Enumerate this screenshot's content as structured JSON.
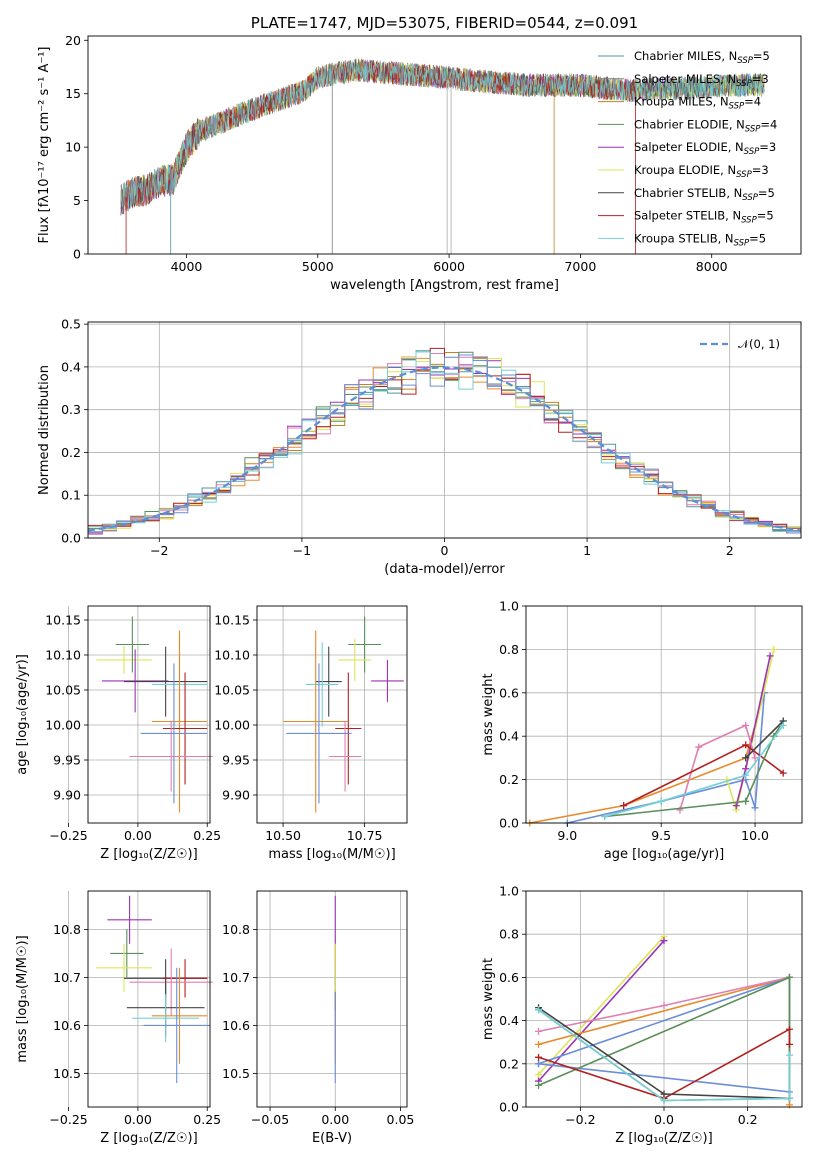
{
  "chart_data": [
    {
      "type": "line",
      "title": "PLATE=1747, MJD=53075, FIBERID=0544, z=0.091",
      "xlabel": "wavelength [Angstrom, rest frame]",
      "ylabel": "Flux [fλ10⁻¹⁷ erg cm⁻² s⁻¹ A⁻¹]",
      "xlim": [
        3250,
        8680
      ],
      "ylim": [
        0,
        20.4
      ],
      "xticks": [
        "4000",
        "5000",
        "6000",
        "7000",
        "8000"
      ],
      "yticks": [
        "0",
        "5",
        "10",
        "15",
        "20"
      ],
      "grid": false,
      "legend": "upper right",
      "spectrum_anchors": {
        "x": [
          3500,
          3600,
          3700,
          3800,
          3900,
          4000,
          4100,
          4200,
          4300,
          4400,
          4600,
          4800,
          4900,
          5000,
          5100,
          5300,
          5500,
          5700,
          6000,
          6200,
          6400,
          6600,
          6800,
          7000,
          7200,
          7400,
          7600,
          7800,
          8000,
          8200,
          8400
        ],
        "y": [
          5.0,
          5.8,
          6.0,
          6.8,
          7.0,
          10.0,
          11.5,
          12.0,
          12.5,
          13.0,
          14.0,
          14.8,
          15.3,
          16.5,
          16.8,
          17.2,
          17.0,
          16.8,
          16.5,
          16.2,
          16.0,
          15.8,
          15.8,
          15.8,
          15.5,
          15.3,
          15.5,
          15.5,
          15.6,
          15.8,
          15.8
        ]
      },
      "series": [
        {
          "name": "Chabrier MILES",
          "label_suffix": "=5",
          "color": "#4f9a9a"
        },
        {
          "name": "Salpeter MILES",
          "label_suffix": "=3",
          "color": "#7e7e7e"
        },
        {
          "name": "Kroupa MILES",
          "label_suffix": "=4",
          "color": "#c8811f"
        },
        {
          "name": "Chabrier ELODIE",
          "label_suffix": "=4",
          "color": "#5a8f5a"
        },
        {
          "name": "Salpeter ELODIE",
          "label_suffix": "=3",
          "color": "#9b33b5"
        },
        {
          "name": "Kroupa ELODIE",
          "label_suffix": "=3",
          "color": "#dde55a"
        },
        {
          "name": "Chabrier STELIB",
          "label_suffix": "=5",
          "color": "#444444"
        },
        {
          "name": "Salpeter STELIB",
          "label_suffix": "=5",
          "color": "#b32020"
        },
        {
          "name": "Kroupa STELIB",
          "label_suffix": "=5",
          "color": "#74d0d8"
        }
      ],
      "legend_label_prefix": "N",
      "legend_label_sub": "SSP"
    },
    {
      "type": "bar",
      "subtype": "step-histogram",
      "xlabel": "(data-model)/error",
      "ylabel": "Normed distribution",
      "xlim": [
        -2.5,
        2.5
      ],
      "ylim": [
        0,
        0.505
      ],
      "xticks": [
        "−2",
        "−1",
        "0",
        "1",
        "2"
      ],
      "yticks": [
        "0.0",
        "0.1",
        "0.2",
        "0.3",
        "0.4",
        "0.5"
      ],
      "grid": true,
      "legend": "upper right",
      "legend_entry": "𝒩(0, 1)",
      "gaussian": {
        "mean": 0,
        "sigma": 1,
        "color": "#5b8fd6"
      },
      "bin_width": 0.1,
      "colors": [
        "#4f9a9a",
        "#e88a2a",
        "#c8811f",
        "#5a8f5a",
        "#9b33b5",
        "#dde55a",
        "#e07fb0",
        "#b32020",
        "#74d0d8",
        "#6a8ed8"
      ]
    },
    {
      "type": "scatter",
      "subtype": "errorbar",
      "xlabel": "Z [log₁₀(Z/Z☉)]",
      "ylabel": "age  [log₁₀(age/yr)]",
      "xlim": [
        -0.18,
        0.26
      ],
      "ylim": [
        9.86,
        10.17
      ],
      "xticks": [
        "−0.25",
        "0.00",
        "0.25"
      ],
      "yticks": [
        "9.90",
        "9.95",
        "10.00",
        "10.05",
        "10.10",
        "10.15"
      ],
      "grid": true,
      "points": [
        {
          "x": -0.05,
          "xerr": 0.1,
          "y": 10.093,
          "yerr": 0.02,
          "color": "#dde55a"
        },
        {
          "x": -0.02,
          "xerr": 0.06,
          "y": 10.115,
          "yerr": 0.04,
          "color": "#5a8f5a"
        },
        {
          "x": -0.01,
          "xerr": 0.12,
          "y": 10.063,
          "yerr": 0.045,
          "color": "#9b33b5"
        },
        {
          "x": 0.1,
          "xerr": 0.15,
          "y": 10.062,
          "yerr": 0.05,
          "color": "#444444"
        },
        {
          "x": 0.15,
          "xerr": 0.1,
          "y": 10.058,
          "yerr": 0.07,
          "color": "#74d0d8"
        },
        {
          "x": 0.15,
          "xerr": 0.1,
          "y": 10.005,
          "yerr": 0.13,
          "color": "#e88a2a"
        },
        {
          "x": 0.17,
          "xerr": 0.08,
          "y": 9.995,
          "yerr": 0.08,
          "color": "#b32020"
        },
        {
          "x": 0.12,
          "xerr": 0.15,
          "y": 9.955,
          "yerr": 0.05,
          "color": "#e07fb0"
        },
        {
          "x": 0.13,
          "xerr": 0.12,
          "y": 9.988,
          "yerr": 0.1,
          "color": "#6a8ed8"
        }
      ]
    },
    {
      "type": "scatter",
      "subtype": "errorbar",
      "xlabel": "mass [log₁₀(M/M☉)]",
      "ylabel": "",
      "xlim": [
        10.42,
        10.88
      ],
      "ylim": [
        9.86,
        10.17
      ],
      "xticks": [
        "10.50",
        "10.75"
      ],
      "yticks": [
        "9.90",
        "9.95",
        "10.00",
        "10.05",
        "10.10",
        "10.15"
      ],
      "grid": true,
      "points": [
        {
          "x": 10.82,
          "xerr": 0.05,
          "y": 10.063,
          "yerr": 0.03,
          "color": "#9b33b5"
        },
        {
          "x": 10.75,
          "xerr": 0.05,
          "y": 10.115,
          "yerr": 0.04,
          "color": "#5a8f5a"
        },
        {
          "x": 10.72,
          "xerr": 0.05,
          "y": 10.093,
          "yerr": 0.03,
          "color": "#dde55a"
        },
        {
          "x": 10.64,
          "xerr": 0.04,
          "y": 10.062,
          "yerr": 0.05,
          "color": "#444444"
        },
        {
          "x": 10.62,
          "xerr": 0.05,
          "y": 10.058,
          "yerr": 0.06,
          "color": "#74d0d8"
        },
        {
          "x": 10.7,
          "xerr": 0.04,
          "y": 9.995,
          "yerr": 0.08,
          "color": "#b32020"
        },
        {
          "x": 10.6,
          "xerr": 0.1,
          "y": 10.005,
          "yerr": 0.13,
          "color": "#e88a2a"
        },
        {
          "x": 10.69,
          "xerr": 0.05,
          "y": 9.955,
          "yerr": 0.05,
          "color": "#e07fb0"
        },
        {
          "x": 10.61,
          "xerr": 0.1,
          "y": 9.988,
          "yerr": 0.1,
          "color": "#6a8ed8"
        }
      ]
    },
    {
      "type": "line",
      "xlabel": "age  [log₁₀(age/yr)]",
      "ylabel": "mass weight",
      "xlim": [
        8.78,
        10.25
      ],
      "ylim": [
        0,
        1
      ],
      "xticks": [
        "9.0",
        "9.5",
        "10.0"
      ],
      "yticks": [
        "0.0",
        "0.2",
        "0.4",
        "0.6",
        "0.8",
        "1.0"
      ],
      "grid": true,
      "series": [
        {
          "color": "#e88a2a",
          "x": [
            8.8,
            9.3,
            9.95,
            10.05
          ],
          "y": [
            0.0,
            0.08,
            0.3,
            0.6
          ]
        },
        {
          "color": "#6a8ed8",
          "x": [
            9.0,
            9.5,
            9.95,
            10.0,
            10.05
          ],
          "y": [
            0.0,
            0.1,
            0.2,
            0.07,
            0.6
          ]
        },
        {
          "color": "#dde55a",
          "x": [
            9.85,
            9.9,
            10.1
          ],
          "y": [
            0.2,
            0.06,
            0.8
          ]
        },
        {
          "color": "#9b33b5",
          "x": [
            9.9,
            9.95,
            10.08
          ],
          "y": [
            0.08,
            0.25,
            0.77
          ]
        },
        {
          "color": "#e07fb0",
          "x": [
            9.6,
            9.7,
            9.95,
            10.0
          ],
          "y": [
            0.06,
            0.35,
            0.45,
            0.3
          ]
        },
        {
          "color": "#b32020",
          "x": [
            9.3,
            9.95,
            10.15
          ],
          "y": [
            0.08,
            0.36,
            0.23
          ]
        },
        {
          "color": "#5a8f5a",
          "x": [
            9.2,
            9.95,
            10.1,
            10.15
          ],
          "y": [
            0.03,
            0.1,
            0.4,
            0.47
          ]
        },
        {
          "color": "#444444",
          "x": [
            9.95,
            10.15
          ],
          "y": [
            0.3,
            0.47
          ]
        },
        {
          "color": "#74d0d8",
          "x": [
            9.2,
            9.5,
            9.95,
            10.15
          ],
          "y": [
            0.03,
            0.1,
            0.22,
            0.45
          ]
        }
      ]
    },
    {
      "type": "scatter",
      "subtype": "errorbar",
      "xlabel": "Z [log₁₀(Z/Z☉)]",
      "ylabel": "mass [log₁₀(M/M☉)]",
      "xlim": [
        -0.18,
        0.26
      ],
      "ylim": [
        10.43,
        10.88
      ],
      "xticks": [
        "−0.25",
        "0.00",
        "0.25"
      ],
      "yticks": [
        "10.5",
        "10.6",
        "10.7",
        "10.8"
      ],
      "grid": true,
      "points": [
        {
          "x": -0.03,
          "xerr": 0.08,
          "y": 10.82,
          "yerr": 0.05,
          "color": "#9b33b5"
        },
        {
          "x": -0.04,
          "xerr": 0.06,
          "y": 10.75,
          "yerr": 0.05,
          "color": "#5a8f5a"
        },
        {
          "x": -0.05,
          "xerr": 0.1,
          "y": 10.72,
          "yerr": 0.05,
          "color": "#dde55a"
        },
        {
          "x": 0.1,
          "xerr": 0.15,
          "y": 10.698,
          "yerr": 0.04,
          "color": "#444444"
        },
        {
          "x": 0.17,
          "xerr": 0.08,
          "y": 10.698,
          "yerr": 0.04,
          "color": "#b32020"
        },
        {
          "x": 0.12,
          "xerr": 0.15,
          "y": 10.69,
          "yerr": 0.07,
          "color": "#e07fb0"
        },
        {
          "x": 0.1,
          "xerr": 0.14,
          "y": 10.637,
          "yerr": 0.06,
          "color": "#444444"
        },
        {
          "x": 0.15,
          "xerr": 0.1,
          "y": 10.62,
          "yerr": 0.1,
          "color": "#e88a2a"
        },
        {
          "x": 0.1,
          "xerr": 0.12,
          "y": 10.615,
          "yerr": 0.05,
          "color": "#74d0d8"
        },
        {
          "x": 0.14,
          "xerr": 0.12,
          "y": 10.6,
          "yerr": 0.12,
          "color": "#6a8ed8"
        }
      ]
    },
    {
      "type": "scatter",
      "subtype": "errorbar",
      "xlabel": "E(B-V)",
      "ylabel": "",
      "xlim": [
        -0.06,
        0.055
      ],
      "ylim": [
        10.43,
        10.88
      ],
      "xticks": [
        "−0.05",
        "0.00",
        "0.05"
      ],
      "yticks": [
        "10.5",
        "10.6",
        "10.7",
        "10.8"
      ],
      "grid": true,
      "points": [
        {
          "x": 0,
          "y": 10.82,
          "yerr": 0.05,
          "color": "#9b33b5"
        },
        {
          "x": 0,
          "y": 10.7,
          "yerr": 0.07,
          "color": "#b32020"
        },
        {
          "x": 0,
          "y": 10.62,
          "yerr": 0.1,
          "color": "#e88a2a"
        },
        {
          "x": 0,
          "y": 10.6,
          "yerr": 0.12,
          "color": "#6a8ed8"
        },
        {
          "x": 0,
          "y": 10.72,
          "yerr": 0.05,
          "color": "#dde55a"
        }
      ]
    },
    {
      "type": "line",
      "xlabel": "Z [log₁₀(Z/Z☉)]",
      "ylabel": "mass weight",
      "xlim": [
        -0.33,
        0.33
      ],
      "ylim": [
        0,
        1
      ],
      "xticks": [
        "−0.2",
        "0.0",
        "0.2"
      ],
      "yticks": [
        "0.0",
        "0.2",
        "0.4",
        "0.6",
        "0.8",
        "1.0"
      ],
      "grid": true,
      "series": [
        {
          "color": "#dde55a",
          "x": [
            -0.3,
            0.0,
            -0.3
          ],
          "y": [
            0.15,
            0.79,
            0.15
          ]
        },
        {
          "color": "#9b33b5",
          "x": [
            -0.3,
            0.0
          ],
          "y": [
            0.12,
            0.77
          ]
        },
        {
          "color": "#e88a2a",
          "x": [
            -0.3,
            0.3,
            0.3
          ],
          "y": [
            0.29,
            0.6,
            0.01
          ]
        },
        {
          "color": "#6a8ed8",
          "x": [
            -0.3,
            0.3,
            0.3,
            -0.3
          ],
          "y": [
            0.2,
            0.6,
            0.07,
            0.2
          ]
        },
        {
          "color": "#e07fb0",
          "x": [
            -0.3,
            0.0,
            0.3
          ],
          "y": [
            0.35,
            0.47,
            0.6
          ]
        },
        {
          "color": "#5a8f5a",
          "x": [
            -0.3,
            0.3,
            0.3,
            0.0,
            -0.3
          ],
          "y": [
            0.1,
            0.6,
            0.04,
            0.03,
            0.45
          ]
        },
        {
          "color": "#b32020",
          "x": [
            -0.3,
            0.0,
            0.3,
            0.3
          ],
          "y": [
            0.23,
            0.04,
            0.36,
            0.29
          ]
        },
        {
          "color": "#444444",
          "x": [
            -0.3,
            0.0,
            0.3
          ],
          "y": [
            0.46,
            0.06,
            0.04
          ]
        },
        {
          "color": "#74d0d8",
          "x": [
            -0.3,
            0.0,
            0.3,
            0.3
          ],
          "y": [
            0.45,
            0.03,
            0.04,
            0.24
          ]
        }
      ]
    }
  ]
}
